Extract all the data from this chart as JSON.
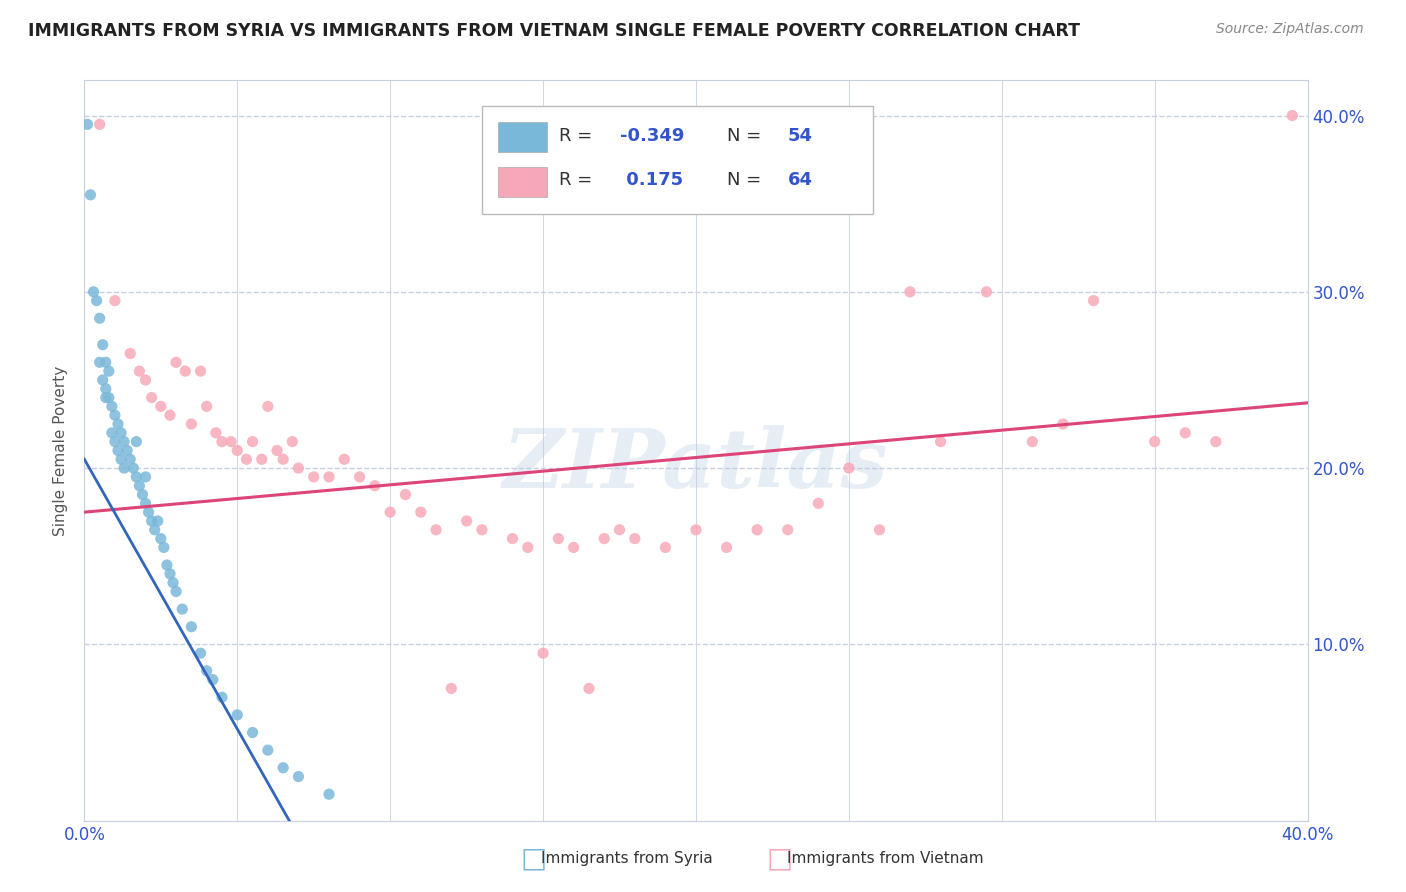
{
  "title": "IMMIGRANTS FROM SYRIA VS IMMIGRANTS FROM VIETNAM SINGLE FEMALE POVERTY CORRELATION CHART",
  "source_text": "Source: ZipAtlas.com",
  "ylabel": "Single Female Poverty",
  "xlim": [
    0.0,
    0.4
  ],
  "ylim": [
    0.0,
    0.42
  ],
  "xticks": [
    0.0,
    0.05,
    0.1,
    0.15,
    0.2,
    0.25,
    0.3,
    0.35,
    0.4
  ],
  "ytick_positions": [
    0.1,
    0.2,
    0.3,
    0.4
  ],
  "ytick_labels": [
    "10.0%",
    "20.0%",
    "30.0%",
    "40.0%"
  ],
  "syria_color": "#7ab8d9",
  "vietnam_color": "#f7a8b8",
  "syria_R": -0.349,
  "syria_N": 54,
  "vietnam_R": 0.175,
  "vietnam_N": 64,
  "trend_blue_color": "#3366bb",
  "trend_pink_color": "#dd4477",
  "trend_gray_color": "#aabbcc",
  "watermark": "ZIPatlas",
  "legend_text_color": "#3355cc",
  "background_color": "#ffffff",
  "grid_color": "#c8d0e0",
  "title_color": "#222222",
  "syria_points": [
    [
      0.001,
      0.395
    ],
    [
      0.002,
      0.355
    ],
    [
      0.003,
      0.3
    ],
    [
      0.004,
      0.295
    ],
    [
      0.005,
      0.26
    ],
    [
      0.005,
      0.285
    ],
    [
      0.006,
      0.25
    ],
    [
      0.006,
      0.27
    ],
    [
      0.007,
      0.245
    ],
    [
      0.007,
      0.26
    ],
    [
      0.007,
      0.24
    ],
    [
      0.008,
      0.24
    ],
    [
      0.008,
      0.255
    ],
    [
      0.009,
      0.235
    ],
    [
      0.009,
      0.22
    ],
    [
      0.01,
      0.23
    ],
    [
      0.01,
      0.215
    ],
    [
      0.011,
      0.225
    ],
    [
      0.011,
      0.21
    ],
    [
      0.012,
      0.22
    ],
    [
      0.012,
      0.205
    ],
    [
      0.013,
      0.215
    ],
    [
      0.013,
      0.2
    ],
    [
      0.014,
      0.21
    ],
    [
      0.015,
      0.205
    ],
    [
      0.016,
      0.2
    ],
    [
      0.017,
      0.215
    ],
    [
      0.017,
      0.195
    ],
    [
      0.018,
      0.19
    ],
    [
      0.019,
      0.185
    ],
    [
      0.02,
      0.18
    ],
    [
      0.02,
      0.195
    ],
    [
      0.021,
      0.175
    ],
    [
      0.022,
      0.17
    ],
    [
      0.023,
      0.165
    ],
    [
      0.024,
      0.17
    ],
    [
      0.025,
      0.16
    ],
    [
      0.026,
      0.155
    ],
    [
      0.027,
      0.145
    ],
    [
      0.028,
      0.14
    ],
    [
      0.029,
      0.135
    ],
    [
      0.03,
      0.13
    ],
    [
      0.032,
      0.12
    ],
    [
      0.035,
      0.11
    ],
    [
      0.038,
      0.095
    ],
    [
      0.04,
      0.085
    ],
    [
      0.042,
      0.08
    ],
    [
      0.045,
      0.07
    ],
    [
      0.05,
      0.06
    ],
    [
      0.055,
      0.05
    ],
    [
      0.06,
      0.04
    ],
    [
      0.065,
      0.03
    ],
    [
      0.07,
      0.025
    ],
    [
      0.08,
      0.015
    ]
  ],
  "vietnam_points": [
    [
      0.005,
      0.395
    ],
    [
      0.01,
      0.295
    ],
    [
      0.015,
      0.265
    ],
    [
      0.018,
      0.255
    ],
    [
      0.02,
      0.25
    ],
    [
      0.022,
      0.24
    ],
    [
      0.025,
      0.235
    ],
    [
      0.028,
      0.23
    ],
    [
      0.03,
      0.26
    ],
    [
      0.033,
      0.255
    ],
    [
      0.035,
      0.225
    ],
    [
      0.038,
      0.255
    ],
    [
      0.04,
      0.235
    ],
    [
      0.043,
      0.22
    ],
    [
      0.045,
      0.215
    ],
    [
      0.048,
      0.215
    ],
    [
      0.05,
      0.21
    ],
    [
      0.053,
      0.205
    ],
    [
      0.055,
      0.215
    ],
    [
      0.058,
      0.205
    ],
    [
      0.06,
      0.235
    ],
    [
      0.063,
      0.21
    ],
    [
      0.065,
      0.205
    ],
    [
      0.068,
      0.215
    ],
    [
      0.07,
      0.2
    ],
    [
      0.075,
      0.195
    ],
    [
      0.08,
      0.195
    ],
    [
      0.085,
      0.205
    ],
    [
      0.09,
      0.195
    ],
    [
      0.095,
      0.19
    ],
    [
      0.1,
      0.175
    ],
    [
      0.105,
      0.185
    ],
    [
      0.11,
      0.175
    ],
    [
      0.115,
      0.165
    ],
    [
      0.12,
      0.075
    ],
    [
      0.125,
      0.17
    ],
    [
      0.13,
      0.165
    ],
    [
      0.14,
      0.16
    ],
    [
      0.145,
      0.155
    ],
    [
      0.15,
      0.095
    ],
    [
      0.155,
      0.16
    ],
    [
      0.16,
      0.155
    ],
    [
      0.165,
      0.075
    ],
    [
      0.17,
      0.16
    ],
    [
      0.175,
      0.165
    ],
    [
      0.18,
      0.16
    ],
    [
      0.19,
      0.155
    ],
    [
      0.2,
      0.165
    ],
    [
      0.21,
      0.155
    ],
    [
      0.22,
      0.165
    ],
    [
      0.23,
      0.165
    ],
    [
      0.24,
      0.18
    ],
    [
      0.25,
      0.2
    ],
    [
      0.26,
      0.165
    ],
    [
      0.27,
      0.3
    ],
    [
      0.28,
      0.215
    ],
    [
      0.295,
      0.3
    ],
    [
      0.31,
      0.215
    ],
    [
      0.32,
      0.225
    ],
    [
      0.33,
      0.295
    ],
    [
      0.35,
      0.215
    ],
    [
      0.36,
      0.22
    ],
    [
      0.37,
      0.215
    ],
    [
      0.395,
      0.4
    ]
  ]
}
